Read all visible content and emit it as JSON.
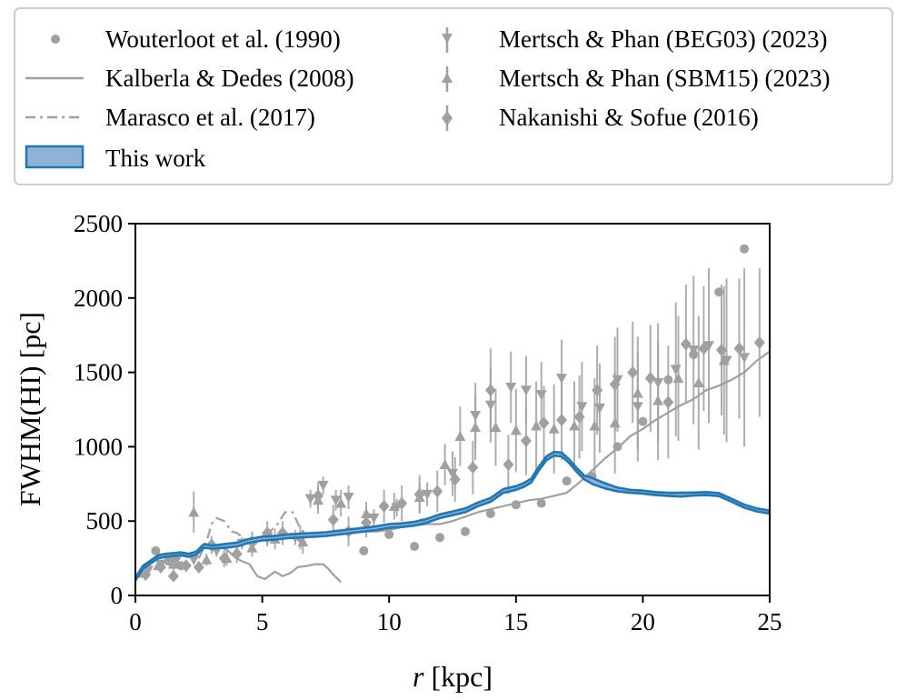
{
  "chart_data": {
    "type": "scatter",
    "xlabel": "r [kpc]",
    "xlabel_var": "r",
    "xlabel_unit": " [kpc]",
    "ylabel": "FWHM(HI) [pc]",
    "xlim": [
      0,
      25
    ],
    "ylim": [
      0,
      2500
    ],
    "xticks": [
      0,
      5,
      10,
      15,
      20,
      25
    ],
    "yticks": [
      0,
      500,
      1000,
      1500,
      2000,
      2500
    ],
    "grid": false,
    "legend_position": "top",
    "legend": [
      {
        "label": "Wouterloot et al. (1990)",
        "marker": "circle"
      },
      {
        "label": "Kalberla & Dedes (2008)",
        "marker": "solid-line"
      },
      {
        "label": "Marasco et al. (2017)",
        "marker": "dashdot-line"
      },
      {
        "label": "This work",
        "marker": "filled-band"
      },
      {
        "label": "Mertsch & Phan (BEG03) (2023)",
        "marker": "triangle-down"
      },
      {
        "label": "Mertsch & Phan (SBM15) (2023)",
        "marker": "triangle-up"
      },
      {
        "label": "Nakanishi & Sofue (2016)",
        "marker": "diamond"
      }
    ],
    "colors": {
      "reference": "#a0a0a0",
      "this_work_line": "#1f77b4",
      "this_work_fill": "#8fb3d4"
    },
    "series": [
      {
        "name": "Wouterloot et al. (1990)",
        "style": "circle",
        "x": [
          0.4,
          0.8,
          1.3,
          1.8,
          9.0,
          10.0,
          11.0,
          12.0,
          13.0,
          14.0,
          15.0,
          16.0,
          17.0,
          18.0,
          19.0,
          20.0,
          21.0,
          22.0,
          23.0,
          24.0
        ],
        "y": [
          160,
          300,
          230,
          200,
          300,
          410,
          330,
          390,
          430,
          550,
          610,
          620,
          770,
          800,
          1000,
          1170,
          1450,
          1620,
          2040,
          2330
        ]
      },
      {
        "name": "Kalberla & Dedes (2008)",
        "style": "solid-line",
        "x": [
          3.0,
          3.3,
          3.6,
          3.9,
          4.2,
          4.5,
          4.8,
          5.1,
          5.5,
          5.8,
          6.1,
          6.4,
          6.8,
          7.1,
          7.4,
          7.6,
          7.8,
          8.1
        ],
        "y": [
          300,
          330,
          310,
          260,
          230,
          210,
          130,
          110,
          160,
          130,
          150,
          190,
          200,
          210,
          210,
          180,
          140,
          90
        ]
      },
      {
        "name": "Kalberla & Dedes (2008)",
        "style": "solid-line",
        "x": [
          8.3,
          8.6,
          9.0,
          9.5,
          10.0,
          10.5,
          11.0,
          11.5,
          12.0,
          12.5,
          13.0,
          13.5,
          14.0,
          14.5,
          15.0,
          15.5,
          16.0,
          16.5,
          17.0,
          17.5,
          18.0,
          18.5,
          19.0,
          19.5,
          20.0,
          20.5,
          21.0,
          21.5,
          22.0,
          22.5,
          23.0,
          23.5,
          24.0,
          24.5,
          25.0
        ],
        "y": [
          450,
          440,
          430,
          430,
          440,
          460,
          470,
          480,
          480,
          500,
          530,
          560,
          580,
          600,
          620,
          640,
          650,
          670,
          690,
          760,
          840,
          920,
          990,
          1070,
          1120,
          1180,
          1230,
          1280,
          1320,
          1380,
          1410,
          1450,
          1500,
          1580,
          1640
        ]
      },
      {
        "name": "Marasco et al. (2017)",
        "style": "dashdot-line",
        "x": [
          2.5,
          2.8,
          3.0,
          3.2,
          3.5,
          3.8,
          4.0,
          4.3,
          4.6,
          5.0,
          5.3,
          5.6,
          5.9,
          6.2,
          6.5,
          6.8,
          7.0,
          7.3,
          7.6,
          8.0
        ],
        "y": [
          250,
          360,
          480,
          520,
          500,
          430,
          420,
          380,
          330,
          380,
          430,
          480,
          560,
          560,
          450,
          400,
          410,
          400,
          420,
          420
        ]
      },
      {
        "name": "Mertsch & Phan (BEG03) (2023)",
        "style": "triangle-down",
        "x": [
          0.5,
          1.0,
          1.6,
          2.3,
          3.2,
          4.2,
          5.2,
          6.3,
          6.9,
          7.4,
          7.9,
          8.4,
          9.4,
          10.3,
          11.5,
          12.5,
          13.4,
          14.0,
          14.8,
          15.4,
          16.0,
          16.8,
          17.6,
          18.3,
          19.0,
          19.8,
          20.6,
          21.3,
          22.0,
          22.6,
          23.3,
          24.0
        ],
        "y": [
          170,
          210,
          230,
          240,
          300,
          350,
          380,
          390,
          650,
          740,
          640,
          660,
          520,
          590,
          680,
          820,
          1210,
          1280,
          1400,
          1380,
          1350,
          1460,
          1270,
          1260,
          1450,
          1270,
          1430,
          1520,
          1650,
          1680,
          1580,
          1600
        ],
        "yerr": [
          20,
          20,
          30,
          30,
          40,
          40,
          50,
          50,
          60,
          60,
          70,
          80,
          60,
          60,
          80,
          150,
          220,
          250,
          240,
          230,
          220,
          260,
          300,
          300,
          350,
          370,
          400,
          450,
          500,
          520,
          550,
          600
        ]
      },
      {
        "name": "Mertsch & Phan (SBM15) (2023)",
        "style": "triangle-up",
        "x": [
          0.3,
          0.9,
          1.5,
          2.3,
          2.8,
          3.6,
          4.6,
          5.5,
          6.6,
          7.2,
          8.1,
          9.1,
          10.2,
          11.2,
          12.2,
          12.8,
          13.4,
          14.2,
          15.0,
          15.8,
          16.5,
          17.3,
          18.1,
          18.9,
          19.8,
          20.6,
          21.4,
          22.2,
          23.2
        ],
        "y": [
          150,
          200,
          210,
          560,
          240,
          250,
          320,
          380,
          360,
          640,
          620,
          550,
          600,
          660,
          880,
          1070,
          1130,
          1130,
          1110,
          1140,
          1120,
          1140,
          1140,
          1160,
          1360,
          1310,
          1460,
          1430,
          1580
        ],
        "yerr": [
          20,
          30,
          40,
          140,
          40,
          50,
          60,
          70,
          80,
          90,
          90,
          80,
          90,
          100,
          140,
          200,
          220,
          260,
          280,
          300,
          300,
          300,
          320,
          340,
          380,
          400,
          420,
          450,
          500
        ]
      },
      {
        "name": "Nakanishi & Sofue (2016)",
        "style": "diamond",
        "x": [
          0.4,
          1.0,
          1.5,
          2.0,
          2.5,
          3.0,
          3.5,
          4.0,
          4.6,
          5.2,
          5.8,
          6.5,
          7.2,
          7.8,
          8.4,
          9.1,
          9.8,
          10.5,
          11.2,
          11.9,
          12.6,
          13.3,
          14.0,
          14.7,
          15.4,
          16.1,
          16.8,
          17.5,
          18.2,
          18.9,
          19.6,
          20.3,
          21.0,
          21.7,
          22.4,
          23.1,
          23.8,
          24.6
        ],
        "y": [
          140,
          190,
          130,
          200,
          190,
          340,
          250,
          280,
          360,
          420,
          420,
          390,
          670,
          510,
          430,
          490,
          600,
          620,
          680,
          700,
          780,
          860,
          1380,
          880,
          1040,
          1160,
          1180,
          1200,
          1380,
          1420,
          1500,
          1460,
          1300,
          1690,
          1660,
          1650,
          1660,
          1700
        ],
        "yerr": [
          20,
          30,
          30,
          40,
          40,
          60,
          60,
          60,
          70,
          80,
          80,
          80,
          90,
          100,
          100,
          100,
          110,
          120,
          130,
          140,
          150,
          180,
          280,
          200,
          230,
          250,
          270,
          280,
          300,
          320,
          340,
          360,
          380,
          400,
          420,
          440,
          470,
          500
        ]
      },
      {
        "name": "This work",
        "style": "filled-band",
        "x": [
          0,
          0.3,
          0.6,
          0.9,
          1.2,
          1.5,
          1.8,
          2.1,
          2.4,
          2.7,
          3.0,
          3.5,
          4.0,
          4.5,
          5.0,
          5.5,
          6.0,
          6.5,
          7.0,
          7.5,
          8.0,
          8.5,
          9.0,
          9.5,
          10.0,
          10.5,
          11.0,
          11.5,
          12.0,
          12.5,
          13.0,
          13.5,
          14.0,
          14.5,
          15.0,
          15.3,
          15.6,
          15.9,
          16.2,
          16.5,
          16.8,
          17.1,
          17.4,
          17.7,
          18.0,
          18.5,
          19.0,
          19.5,
          20.0,
          20.5,
          21.0,
          21.5,
          22.0,
          22.5,
          23.0,
          23.5,
          24.0,
          24.5,
          25.0
        ],
        "y_low": [
          100,
          180,
          215,
          250,
          260,
          265,
          270,
          260,
          275,
          320,
          315,
          320,
          330,
          355,
          370,
          375,
          385,
          390,
          395,
          400,
          410,
          420,
          430,
          440,
          455,
          460,
          470,
          490,
          520,
          540,
          560,
          600,
          630,
          690,
          710,
          730,
          760,
          840,
          910,
          940,
          935,
          890,
          830,
          780,
          750,
          720,
          700,
          690,
          685,
          675,
          670,
          665,
          672,
          675,
          668,
          630,
          590,
          565,
          550
        ],
        "y_high": [
          120,
          200,
          235,
          270,
          280,
          285,
          290,
          280,
          295,
          345,
          335,
          345,
          355,
          380,
          395,
          400,
          410,
          415,
          420,
          425,
          435,
          445,
          455,
          465,
          480,
          485,
          495,
          515,
          545,
          565,
          585,
          625,
          655,
          715,
          735,
          755,
          785,
          865,
          935,
          965,
          960,
          915,
          855,
          805,
          790,
          755,
          725,
          710,
          705,
          695,
          690,
          690,
          692,
          695,
          688,
          650,
          610,
          585,
          570
        ]
      }
    ]
  }
}
